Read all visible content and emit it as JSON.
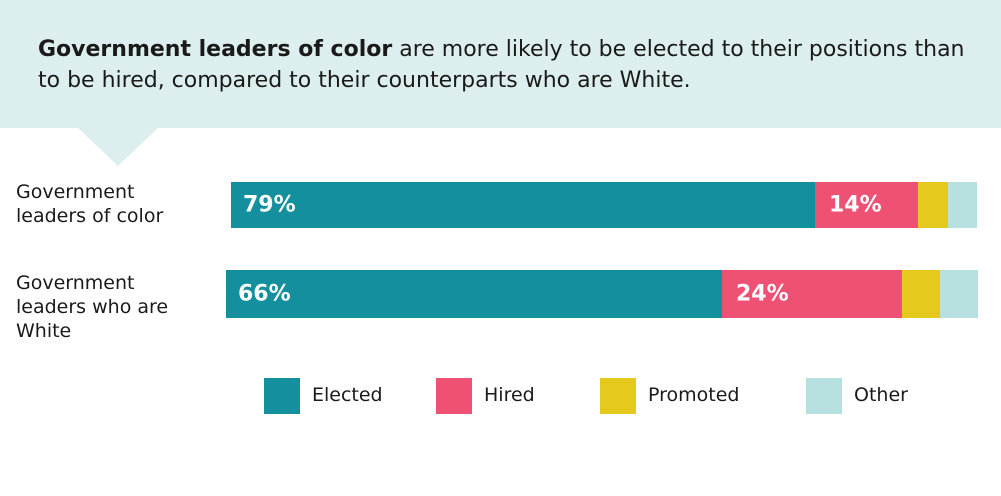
{
  "headline": {
    "bold": "Government leaders of color",
    "rest": " are more likely to be elected to their positions than to be hired, compared to their counterparts who are White."
  },
  "colors": {
    "Elected": "#138f9e",
    "Hired": "#ee5174",
    "Promoted": "#e5c91d",
    "Other": "#b7e1e1",
    "banner": "#dcefee"
  },
  "chart_data": {
    "type": "bar",
    "orientation": "horizontal",
    "stacked": true,
    "categories": [
      "Government leaders of color",
      "Government leaders who are White"
    ],
    "category_label_lines": [
      [
        "Government",
        "leaders of color"
      ],
      [
        "Government",
        "leaders who are",
        "White"
      ]
    ],
    "series": [
      {
        "name": "Elected",
        "values": [
          79,
          66
        ],
        "labels": [
          "79%",
          "66%"
        ]
      },
      {
        "name": "Hired",
        "values": [
          14,
          24
        ],
        "labels": [
          "14%",
          "24%"
        ]
      },
      {
        "name": "Promoted",
        "values": [
          4,
          5
        ],
        "labels": [
          "",
          ""
        ]
      },
      {
        "name": "Other",
        "values": [
          4,
          5
        ],
        "labels": [
          "",
          ""
        ]
      }
    ],
    "xlim": [
      0,
      100
    ],
    "legend_position": "bottom",
    "grid": false
  }
}
